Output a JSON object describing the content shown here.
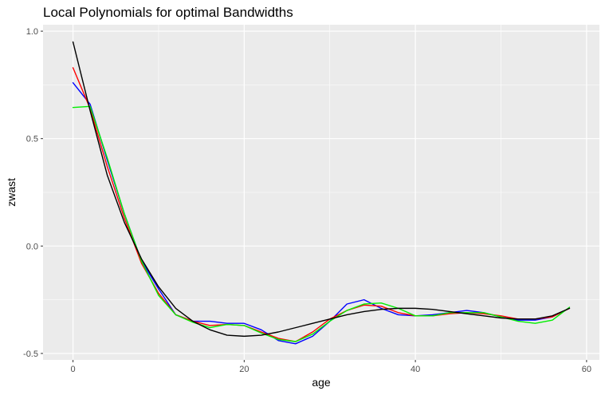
{
  "chart_data": {
    "type": "line",
    "title": "Local Polynomials for optimal Bandwidths",
    "xlabel": "age",
    "ylabel": "zwast",
    "xlim": [
      -3.5,
      61.5
    ],
    "ylim": [
      -0.53,
      1.03
    ],
    "x_ticks": [
      0,
      20,
      40,
      60
    ],
    "x_tick_labels": [
      "0",
      "20",
      "40",
      "60"
    ],
    "y_ticks": [
      -0.5,
      0.0,
      0.5,
      1.0
    ],
    "y_tick_labels": [
      "-0.5",
      "0.0",
      "0.5",
      "1.0"
    ],
    "grid": true,
    "legend": "none",
    "series": [
      {
        "color": "#0000ff",
        "x": [
          0,
          2,
          4,
          6,
          8,
          10,
          12,
          14,
          16,
          18,
          20,
          22,
          24,
          26,
          28,
          30,
          32,
          34,
          36,
          38,
          40,
          42,
          44,
          46,
          48,
          50,
          52,
          54,
          56,
          58
        ],
        "y": [
          0.76,
          0.66,
          0.4,
          0.15,
          -0.07,
          -0.2,
          -0.32,
          -0.35,
          -0.35,
          -0.36,
          -0.36,
          -0.39,
          -0.44,
          -0.455,
          -0.42,
          -0.35,
          -0.27,
          -0.25,
          -0.29,
          -0.32,
          -0.325,
          -0.32,
          -0.31,
          -0.3,
          -0.31,
          -0.33,
          -0.345,
          -0.345,
          -0.33,
          -0.29
        ]
      },
      {
        "color": "#ff0000",
        "x": [
          0,
          2,
          4,
          6,
          8,
          10,
          12,
          14,
          16,
          18,
          20,
          22,
          24,
          26,
          28,
          30,
          32,
          34,
          36,
          38,
          40,
          42,
          44,
          46,
          48,
          50,
          52,
          54,
          56,
          58
        ],
        "y": [
          0.83,
          0.64,
          0.37,
          0.13,
          -0.08,
          -0.22,
          -0.32,
          -0.35,
          -0.37,
          -0.365,
          -0.37,
          -0.4,
          -0.43,
          -0.445,
          -0.4,
          -0.34,
          -0.3,
          -0.275,
          -0.28,
          -0.31,
          -0.325,
          -0.325,
          -0.315,
          -0.31,
          -0.315,
          -0.325,
          -0.34,
          -0.34,
          -0.33,
          -0.29
        ]
      },
      {
        "color": "#00ee00",
        "x": [
          0,
          2,
          4,
          6,
          8,
          10,
          12,
          14,
          16,
          18,
          20,
          22,
          24,
          26,
          28,
          30,
          32,
          34,
          36,
          38,
          40,
          42,
          44,
          46,
          48,
          50,
          52,
          54,
          56,
          58
        ],
        "y": [
          0.645,
          0.65,
          0.41,
          0.15,
          -0.07,
          -0.23,
          -0.32,
          -0.355,
          -0.38,
          -0.365,
          -0.37,
          -0.405,
          -0.435,
          -0.445,
          -0.41,
          -0.35,
          -0.3,
          -0.27,
          -0.265,
          -0.29,
          -0.325,
          -0.325,
          -0.31,
          -0.31,
          -0.31,
          -0.33,
          -0.35,
          -0.36,
          -0.345,
          -0.285
        ]
      },
      {
        "color": "#000000",
        "x": [
          0,
          2,
          4,
          6,
          8,
          10,
          12,
          14,
          16,
          18,
          20,
          22,
          24,
          26,
          28,
          30,
          32,
          34,
          36,
          38,
          40,
          42,
          44,
          46,
          48,
          50,
          52,
          54,
          56,
          58
        ],
        "y": [
          0.95,
          0.63,
          0.33,
          0.11,
          -0.06,
          -0.19,
          -0.29,
          -0.35,
          -0.39,
          -0.415,
          -0.42,
          -0.415,
          -0.4,
          -0.38,
          -0.36,
          -0.34,
          -0.32,
          -0.305,
          -0.295,
          -0.29,
          -0.29,
          -0.295,
          -0.305,
          -0.315,
          -0.325,
          -0.335,
          -0.34,
          -0.34,
          -0.325,
          -0.29
        ]
      }
    ]
  }
}
